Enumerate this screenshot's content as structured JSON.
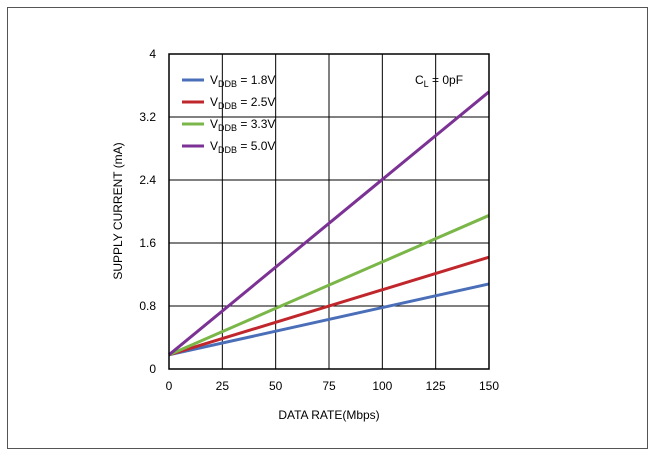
{
  "chart_data": {
    "type": "line",
    "xlabel": "DATA RATE(Mbps)",
    "ylabel": "SUPPLY CURRENT (mA)",
    "xlim": [
      0,
      150
    ],
    "ylim": [
      0,
      4
    ],
    "xticks": [
      "0",
      "25",
      "50",
      "75",
      "100",
      "125",
      "150"
    ],
    "yticks": [
      "0",
      "0.8",
      "1.6",
      "2.4",
      "3.2",
      "4"
    ],
    "grid": true,
    "legend_position": "top-left",
    "annotation": {
      "main": "C",
      "sub": "L",
      "rest": " = 0pF"
    },
    "x": [
      0,
      150
    ],
    "series": [
      {
        "name_main": "V",
        "name_sub": "DDB",
        "name_rest": " = 1.8V",
        "color": "#4a6fb8",
        "values": [
          0.18,
          1.08
        ]
      },
      {
        "name_main": "V",
        "name_sub": "DDB",
        "name_rest": " = 2.5V",
        "color": "#c0272d",
        "values": [
          0.18,
          1.42
        ]
      },
      {
        "name_main": "V",
        "name_sub": "DDB",
        "name_rest": " = 3.3V",
        "color": "#7ab648",
        "values": [
          0.18,
          1.95
        ]
      },
      {
        "name_main": "V",
        "name_sub": "DDB",
        "name_rest": " = 5.0V",
        "color": "#7b3294",
        "values": [
          0.18,
          3.52
        ]
      }
    ]
  }
}
